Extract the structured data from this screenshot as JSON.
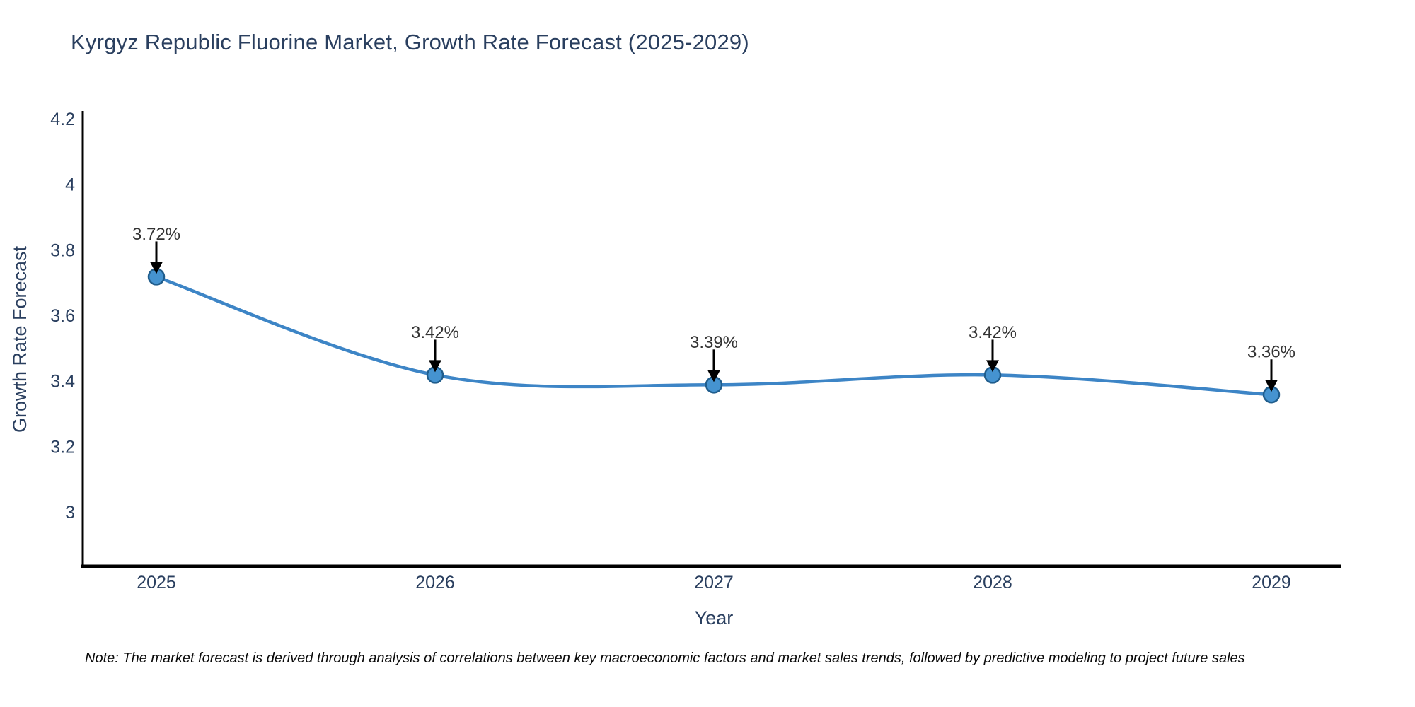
{
  "page": {
    "title": "Kyrgyz Republic Fluorine Market, Growth Rate Forecast (2025-2029)",
    "note": "Note: The market forecast is derived through analysis of correlations between key macroeconomic factors and market sales trends, followed by predictive modeling to project future sales"
  },
  "chart_data": {
    "type": "line",
    "title": "Kyrgyz Republic Fluorine Market, Growth Rate Forecast (2025-2029)",
    "categories": [
      "2025",
      "2026",
      "2027",
      "2028",
      "2029"
    ],
    "values": [
      3.72,
      3.42,
      3.39,
      3.42,
      3.36
    ],
    "point_labels": [
      "3.72%",
      "3.42%",
      "3.39%",
      "3.42%",
      "3.36%"
    ],
    "xlabel": "Year",
    "ylabel": "Growth Rate Forecast",
    "ytick_labels": [
      "4.2",
      "4",
      "3.8",
      "3.6",
      "3.4",
      "3.2",
      "3"
    ],
    "ytick_values": [
      4.2,
      4.0,
      3.8,
      3.6,
      3.4,
      3.2,
      3.0
    ],
    "ylim": [
      2.836,
      4.226
    ],
    "line_shape": "spline",
    "grid": false,
    "legend": false,
    "annotation_style": "down-arrow",
    "colors": {
      "line": "#3d85c6",
      "marker_fill": "#4593d0",
      "marker_edge": "#205d8c",
      "axis_line": "#000000",
      "tick_text": "#2a3f5f",
      "axis_title_text": "#2a3f5f",
      "title_text": "#2a3f5f",
      "annotation_text": "#333333",
      "annotation_arrow": "#000000",
      "background": "#ffffff"
    }
  }
}
